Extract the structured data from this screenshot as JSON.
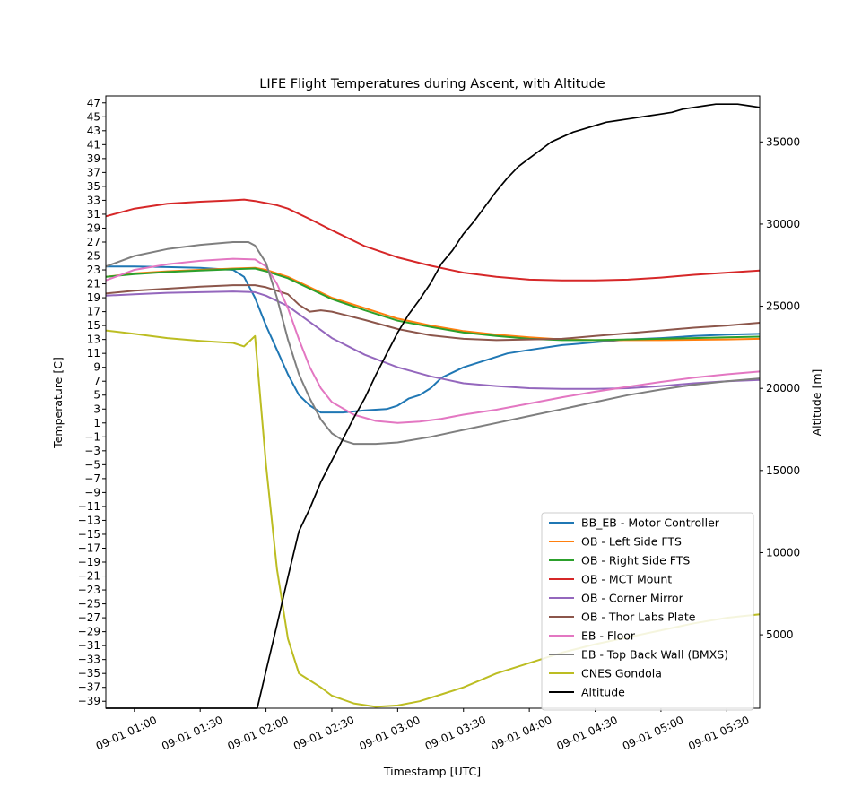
{
  "chart_data": {
    "type": "line",
    "title": "LIFE Flight Temperatures during Ascent, with Altitude",
    "xlabel": "Timestamp [UTC]",
    "ylabel": "Temperature [C]",
    "y2label": "Altitude [m]",
    "xlim": [
      "09-01 00:47",
      "09-01 05:45"
    ],
    "ylim": [
      -40,
      48
    ],
    "y2lim": [
      530,
      37800
    ],
    "x_ticks": [
      "09-01 01:00",
      "09-01 01:30",
      "09-01 02:00",
      "09-01 02:30",
      "09-01 03:00",
      "09-01 03:30",
      "09-01 04:00",
      "09-01 04:30",
      "09-01 05:00",
      "09-01 05:30"
    ],
    "y_ticks": [
      47,
      45,
      43,
      41,
      39,
      37,
      35,
      33,
      31,
      29,
      27,
      25,
      23,
      21,
      19,
      17,
      15,
      13,
      11,
      9,
      7,
      5,
      3,
      1,
      -1,
      -3,
      -5,
      -7,
      -9,
      -11,
      -13,
      -15,
      -17,
      -19,
      -21,
      -23,
      -25,
      -27,
      -29,
      -31,
      -33,
      -35,
      -37,
      -39
    ],
    "y2_ticks": [
      5000,
      10000,
      15000,
      20000,
      25000,
      30000,
      35000
    ],
    "legend_position": "lower-right",
    "grid": false,
    "series": [
      {
        "name": "BB_EB - Motor Controller",
        "color": "#1f77b4",
        "axis": "temp",
        "x": [
          "00:47",
          "01:00",
          "01:15",
          "01:30",
          "01:45",
          "01:50",
          "01:55",
          "02:00",
          "02:05",
          "02:10",
          "02:15",
          "02:20",
          "02:25",
          "02:30",
          "02:35",
          "02:45",
          "02:55",
          "03:00",
          "03:05",
          "03:10",
          "03:15",
          "03:20",
          "03:30",
          "03:40",
          "03:50",
          "04:00",
          "04:15",
          "04:30",
          "04:45",
          "05:00",
          "05:15",
          "05:30",
          "05:45"
        ],
        "y": [
          23.5,
          23.5,
          23.4,
          23.3,
          23.0,
          22.0,
          19.0,
          15.0,
          11.5,
          8.0,
          5.0,
          3.5,
          2.5,
          2.5,
          2.5,
          2.8,
          3.0,
          3.5,
          4.5,
          5.0,
          6.0,
          7.5,
          9.0,
          10.0,
          11.0,
          11.5,
          12.2,
          12.6,
          13.0,
          13.2,
          13.5,
          13.7,
          13.8
        ]
      },
      {
        "name": "OB - Left Side FTS",
        "color": "#ff7f0e",
        "axis": "temp",
        "x": [
          "00:47",
          "01:00",
          "01:15",
          "01:30",
          "01:45",
          "01:55",
          "02:00",
          "02:10",
          "02:20",
          "02:30",
          "02:45",
          "03:00",
          "03:15",
          "03:30",
          "03:45",
          "04:00",
          "04:15",
          "04:30",
          "05:00",
          "05:30",
          "05:45"
        ],
        "y": [
          22.0,
          22.5,
          22.8,
          23.0,
          23.2,
          23.3,
          23.0,
          22.0,
          20.5,
          19.0,
          17.5,
          16.0,
          15.0,
          14.2,
          13.7,
          13.3,
          13.0,
          12.9,
          12.9,
          13.0,
          13.1
        ]
      },
      {
        "name": "OB - Right Side FTS",
        "color": "#2ca02c",
        "axis": "temp",
        "x": [
          "00:47",
          "01:00",
          "01:15",
          "01:30",
          "01:45",
          "01:55",
          "02:00",
          "02:10",
          "02:20",
          "02:30",
          "02:45",
          "03:00",
          "03:15",
          "03:30",
          "03:45",
          "04:00",
          "04:15",
          "04:30",
          "05:00",
          "05:30",
          "05:45"
        ],
        "y": [
          22.0,
          22.4,
          22.7,
          22.9,
          23.1,
          23.2,
          22.8,
          21.8,
          20.3,
          18.8,
          17.2,
          15.7,
          14.8,
          14.0,
          13.5,
          13.1,
          12.9,
          12.9,
          13.1,
          13.3,
          13.4
        ]
      },
      {
        "name": "OB - MCT Mount",
        "color": "#d62728",
        "axis": "temp",
        "x": [
          "00:47",
          "01:00",
          "01:15",
          "01:30",
          "01:45",
          "01:50",
          "01:55",
          "02:00",
          "02:05",
          "02:10",
          "02:20",
          "02:30",
          "02:45",
          "03:00",
          "03:15",
          "03:30",
          "03:45",
          "04:00",
          "04:15",
          "04:30",
          "04:45",
          "05:00",
          "05:15",
          "05:30",
          "05:45"
        ],
        "y": [
          30.7,
          31.8,
          32.5,
          32.8,
          33.0,
          33.1,
          32.9,
          32.6,
          32.3,
          31.8,
          30.3,
          28.7,
          26.4,
          24.8,
          23.6,
          22.6,
          22.0,
          21.6,
          21.5,
          21.5,
          21.6,
          21.9,
          22.3,
          22.6,
          22.9
        ]
      },
      {
        "name": "OB - Corner Mirror",
        "color": "#9467bd",
        "axis": "temp",
        "x": [
          "00:47",
          "01:00",
          "01:15",
          "01:30",
          "01:45",
          "01:55",
          "02:00",
          "02:10",
          "02:20",
          "02:30",
          "02:45",
          "03:00",
          "03:15",
          "03:30",
          "03:45",
          "04:00",
          "04:15",
          "04:30",
          "04:45",
          "05:00",
          "05:15",
          "05:30",
          "05:45"
        ],
        "y": [
          19.3,
          19.5,
          19.7,
          19.8,
          19.9,
          19.8,
          19.3,
          17.8,
          15.5,
          13.2,
          10.8,
          9.0,
          7.7,
          6.7,
          6.3,
          6.0,
          5.9,
          5.9,
          6.0,
          6.3,
          6.7,
          7.0,
          7.2
        ]
      },
      {
        "name": "OB - Thor Labs Plate",
        "color": "#8c564b",
        "axis": "temp",
        "x": [
          "00:47",
          "01:00",
          "01:15",
          "01:30",
          "01:45",
          "01:55",
          "02:00",
          "02:10",
          "02:15",
          "02:20",
          "02:25",
          "02:30",
          "02:45",
          "03:00",
          "03:15",
          "03:30",
          "03:45",
          "04:00",
          "04:15",
          "04:30",
          "04:45",
          "05:00",
          "05:15",
          "05:30",
          "05:45"
        ],
        "y": [
          19.6,
          20.0,
          20.3,
          20.6,
          20.8,
          20.8,
          20.5,
          19.5,
          18.0,
          17.0,
          17.2,
          17.0,
          15.8,
          14.5,
          13.6,
          13.1,
          12.9,
          13.0,
          13.1,
          13.5,
          13.9,
          14.3,
          14.7,
          15.0,
          15.4
        ]
      },
      {
        "name": "EB - Floor",
        "color": "#e377c2",
        "axis": "temp",
        "x": [
          "00:47",
          "01:00",
          "01:15",
          "01:30",
          "01:45",
          "01:55",
          "02:00",
          "02:05",
          "02:10",
          "02:15",
          "02:20",
          "02:25",
          "02:30",
          "02:40",
          "02:50",
          "03:00",
          "03:10",
          "03:20",
          "03:30",
          "03:45",
          "04:00",
          "04:15",
          "04:30",
          "04:45",
          "05:00",
          "05:15",
          "05:30",
          "05:45"
        ],
        "y": [
          21.5,
          23.0,
          23.8,
          24.3,
          24.6,
          24.5,
          23.5,
          21.0,
          17.5,
          13.0,
          9.0,
          6.0,
          4.0,
          2.2,
          1.3,
          1.0,
          1.2,
          1.6,
          2.2,
          2.9,
          3.8,
          4.7,
          5.5,
          6.2,
          6.9,
          7.5,
          8.0,
          8.4
        ]
      },
      {
        "name": "EB - Top Back Wall (BMXS)",
        "color": "#7f7f7f",
        "axis": "temp",
        "x": [
          "00:47",
          "01:00",
          "01:15",
          "01:30",
          "01:45",
          "01:52",
          "01:55",
          "02:00",
          "02:05",
          "02:10",
          "02:15",
          "02:20",
          "02:25",
          "02:30",
          "02:35",
          "02:40",
          "02:50",
          "03:00",
          "03:15",
          "03:30",
          "03:45",
          "04:00",
          "04:15",
          "04:30",
          "04:45",
          "05:00",
          "05:15",
          "05:30",
          "05:45"
        ],
        "y": [
          23.5,
          25.0,
          26.0,
          26.6,
          27.0,
          27.0,
          26.5,
          24.0,
          19.0,
          13.0,
          8.0,
          4.5,
          1.5,
          -0.5,
          -1.5,
          -2.0,
          -2.0,
          -1.8,
          -1.0,
          0.0,
          1.0,
          2.0,
          3.0,
          4.0,
          5.0,
          5.8,
          6.5,
          7.0,
          7.4
        ]
      },
      {
        "name": "CNES Gondola",
        "color": "#bcbd22",
        "axis": "temp",
        "x": [
          "00:47",
          "01:00",
          "01:15",
          "01:30",
          "01:45",
          "01:50",
          "01:55",
          "02:00",
          "02:05",
          "02:10",
          "02:15",
          "02:20",
          "02:25",
          "02:30",
          "02:40",
          "02:50",
          "03:00",
          "03:10",
          "03:20",
          "03:30",
          "03:45",
          "04:00",
          "04:15",
          "04:30",
          "04:45",
          "05:00",
          "05:15",
          "05:30",
          "05:45"
        ],
        "y": [
          14.3,
          13.8,
          13.2,
          12.8,
          12.5,
          12.0,
          13.5,
          -5.0,
          -20.0,
          -30.0,
          -35.0,
          -36.0,
          -37.0,
          -38.2,
          -39.3,
          -39.8,
          -39.6,
          -39.0,
          -38.0,
          -37.0,
          -35.0,
          -33.5,
          -32.0,
          -30.8,
          -29.8,
          -28.8,
          -27.8,
          -27.0,
          -26.5
        ]
      },
      {
        "name": "Altitude",
        "color": "#000000",
        "axis": "altitude",
        "x": [
          "00:47",
          "01:00",
          "01:15",
          "01:30",
          "01:45",
          "01:56",
          "02:00",
          "02:05",
          "02:10",
          "02:15",
          "02:20",
          "02:25",
          "02:30",
          "02:35",
          "02:40",
          "02:45",
          "02:50",
          "02:55",
          "03:00",
          "03:05",
          "03:10",
          "03:15",
          "03:20",
          "03:25",
          "03:30",
          "03:35",
          "03:40",
          "03:45",
          "03:50",
          "03:55",
          "04:00",
          "04:05",
          "04:10",
          "04:15",
          "04:20",
          "04:25",
          "04:30",
          "04:35",
          "04:40",
          "04:45",
          "04:50",
          "04:55",
          "05:00",
          "05:05",
          "05:10",
          "05:15",
          "05:20",
          "05:25",
          "05:30",
          "05:35",
          "05:40",
          "05:45"
        ],
        "y": [
          530,
          530,
          530,
          530,
          530,
          530,
          2800,
          5600,
          8500,
          11300,
          12700,
          14300,
          15600,
          16900,
          18200,
          19400,
          20800,
          22100,
          23400,
          24500,
          25400,
          26400,
          27600,
          28400,
          29400,
          30200,
          31100,
          32000,
          32800,
          33500,
          34000,
          34500,
          35000,
          35300,
          35600,
          35800,
          36000,
          36200,
          36300,
          36400,
          36500,
          36600,
          36700,
          36800,
          37000,
          37100,
          37200,
          37300,
          37300,
          37300,
          37200,
          37100
        ]
      }
    ]
  }
}
